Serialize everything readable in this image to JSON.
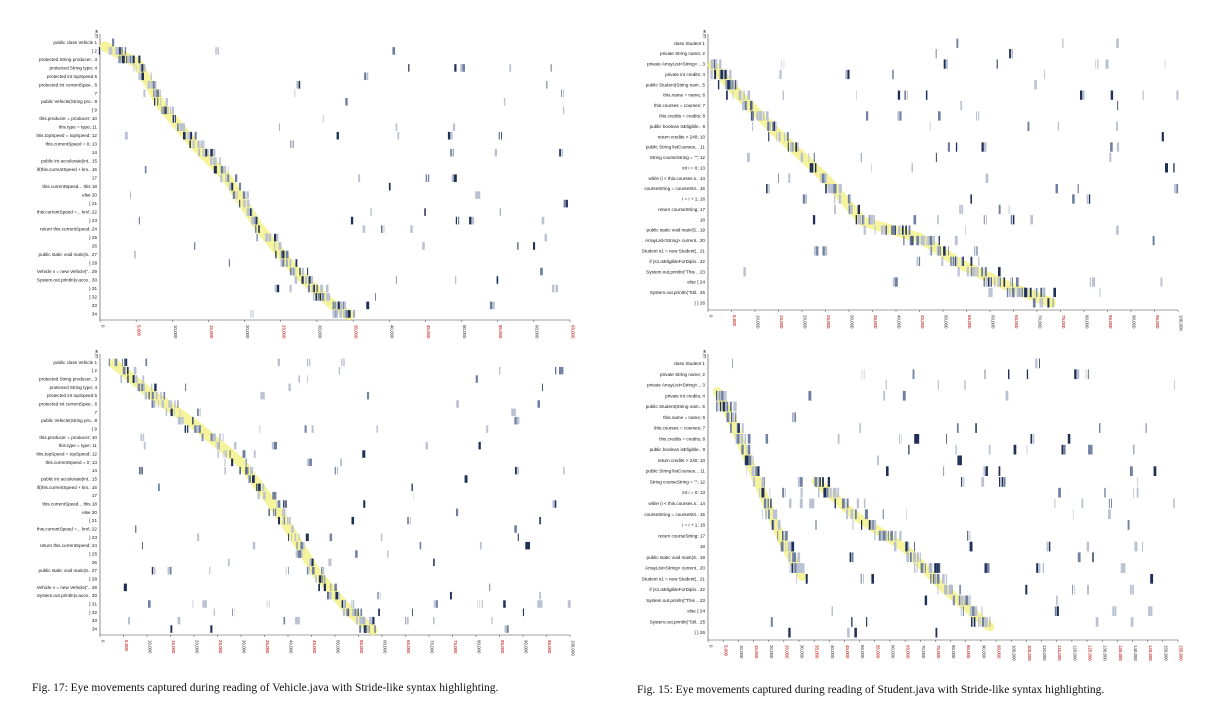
{
  "figures": [
    {
      "id": "vehicle",
      "ylabel": "Line",
      "x_ticks": [
        "0",
        "5,000",
        "10,000",
        "15,000",
        "20,000",
        "25,000",
        "30,000",
        "35,000",
        "40,000",
        "45,000",
        "50,000",
        "55,000",
        "60,000",
        "65,000"
      ],
      "line_labels": [
        "public class Vehicle 1",
        "{ 2",
        "protected String producer.. 3",
        "protected String type; 4",
        "protected int topSpeed 5",
        "protected int currentSpee.. 6",
        "7",
        "public Vehicle(String pro.. 8",
        "{ 9",
        "this.producer = producer; 10",
        "this.type = type; 11",
        "this.topSpeed = topSpeed; 12",
        "this.currentSpeed = 0; 13",
        "14",
        "public int accelerate(int.. 15",
        "if(this.currentSpeed + km.. 16",
        "17",
        "this.currentSpeed... this 18",
        "else 20",
        "{ 21",
        "this.currentSpeed =... km\\; 22",
        "} 23",
        "return this.currentSpeed; 24",
        "} 25",
        "26",
        "public static void main(S.. 27",
        "{ 28",
        "Vehicle v = new Vehicle(\".. 29",
        "System.out.println(v.acce.. 30",
        "} 31",
        "} 32",
        "33",
        "34"
      ]
    },
    {
      "id": "student",
      "ylabel": "Line",
      "x_ticks": [
        "0",
        "5,000",
        "10,000",
        "15,000",
        "20,000",
        "25,000",
        "30,000",
        "35,000",
        "40,000",
        "45,000",
        "50,000",
        "55,000",
        "60,000",
        "65,000",
        "70,000",
        "75,000",
        "80,000",
        "85,000",
        "90,000",
        "95,000",
        "100,000"
      ],
      "line_labels": [
        "class Student 1",
        "private String name; 2",
        "private ArrayList<String>... 3",
        "private int credits; 4",
        "public Student(String nam.. 5",
        "this.name = name; 6",
        "this.courses = courses; 7",
        "this.credits = credits; 8",
        "public boolean isEligible.. 9",
        "return credits > 240; 10",
        "public String listCourses... 11",
        "String courseString = \"\"; 12",
        "int i = 0; 13",
        "while (i < this.courses.s.. 14",
        "courseString = courseStri.. 15",
        "i = i + 1; 16",
        "return courseString; 17",
        "18",
        "public static void main(S.. 19",
        "ArrayList<String> current.. 20",
        "Student s1 = new Student(.. 21",
        "if (s1.isEligibleForDiplo.. 22",
        "System.out.println(\"This .. 23",
        "else { 24",
        "System.out.println(\"Stil.. 25",
        "} } 26"
      ]
    },
    {
      "id": "vehicle-highlight",
      "ylabel": "Line",
      "x_ticks": [
        "0",
        "5,000",
        "10,000",
        "15,000",
        "20,000",
        "25,000",
        "30,000",
        "35,000",
        "40,000",
        "45,000",
        "50,000",
        "55,000",
        "60,000",
        "65,000",
        "70,000",
        "75,000",
        "80,000",
        "85,000",
        "90,000",
        "95,000",
        "100,000"
      ]
    },
    {
      "id": "student-highlight",
      "ylabel": "Line",
      "x_ticks": [
        "0",
        "5,000",
        "10,000",
        "15,000",
        "20,000",
        "25,000",
        "30,000",
        "35,000",
        "40,000",
        "45,000",
        "50,000",
        "55,000",
        "60,000",
        "65,000",
        "70,000",
        "75,000",
        "80,000",
        "85,000",
        "90,000",
        "95,000",
        "100,000",
        "105,000",
        "110,000",
        "115,000",
        "120,000",
        "125,000",
        "130,000",
        "135,000",
        "140,000",
        "145,000",
        "150,000",
        "155,000"
      ]
    }
  ],
  "captions": {
    "fig17": "Fig. 17: Eye movements captured during reading of Vehicle.java with Stride-like syntax highlighting.",
    "fig15": "Fig. 15: Eye movements captured during reading of Student.java with Stride-like syntax highlighting."
  },
  "colors": {
    "fixation_dark": "#1f2f55",
    "fixation_mid": "#6f7f9f",
    "fixation_light": "#b9c1d2",
    "reading_path": "#f3f18a"
  }
}
